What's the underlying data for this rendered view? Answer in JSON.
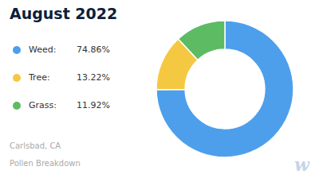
{
  "chart_data": {
    "type": "pie",
    "title": "August 2022",
    "subtitle": [
      "Carlsbad, CA",
      "Pollen Breakdown"
    ],
    "categories": [
      "Weed:",
      "Tree:",
      "Grass:"
    ],
    "values": [
      74.86,
      13.22,
      11.92
    ],
    "value_labels": [
      "74.86%",
      "13.22%",
      "11.92%"
    ],
    "colors": [
      "#4d9fec",
      "#f5c842",
      "#5dbb63"
    ],
    "legend": "left",
    "annotations": [
      "w"
    ]
  }
}
